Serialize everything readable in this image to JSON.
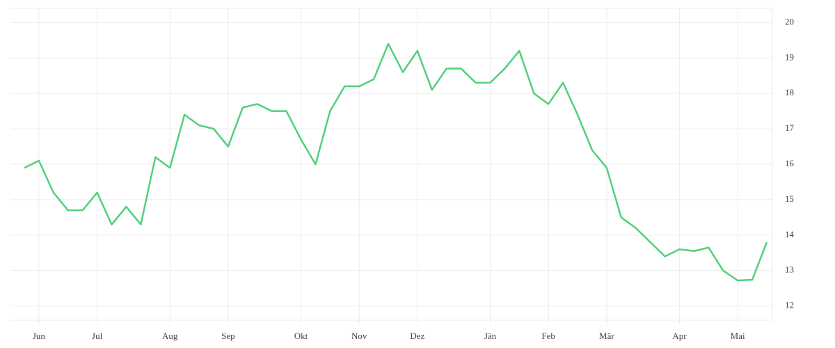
{
  "chart_data": {
    "type": "line",
    "categories": [
      null,
      "Jun",
      null,
      null,
      null,
      "Jul",
      null,
      null,
      null,
      null,
      "Aug",
      null,
      null,
      null,
      "Sep",
      null,
      null,
      null,
      null,
      "Okt",
      null,
      null,
      null,
      "Nov",
      null,
      null,
      null,
      "Dez",
      null,
      null,
      null,
      null,
      "Jän",
      null,
      null,
      null,
      "Feb",
      null,
      null,
      null,
      "Mär",
      null,
      null,
      null,
      null,
      "Apr",
      null,
      null,
      null,
      "Mai",
      null,
      null
    ],
    "values": [
      15.9,
      16.1,
      15.2,
      14.7,
      14.7,
      15.2,
      14.3,
      14.8,
      14.3,
      16.2,
      15.9,
      17.4,
      17.1,
      17.0,
      16.5,
      17.6,
      17.7,
      17.5,
      17.5,
      16.7,
      16.0,
      17.5,
      18.2,
      18.2,
      18.4,
      19.4,
      18.6,
      19.2,
      18.1,
      18.7,
      18.7,
      18.3,
      18.3,
      18.7,
      19.2,
      18.0,
      17.7,
      18.3,
      17.4,
      16.4,
      15.9,
      14.5,
      14.2,
      13.8,
      13.4,
      13.6,
      13.55,
      13.65,
      13.0,
      12.72,
      12.74,
      13.8
    ],
    "color": "#4fd17a",
    "ylim": [
      11.6,
      20.4
    ],
    "yticks": [
      12,
      13,
      14,
      15,
      16,
      17,
      18,
      19,
      20
    ],
    "grid": true
  }
}
